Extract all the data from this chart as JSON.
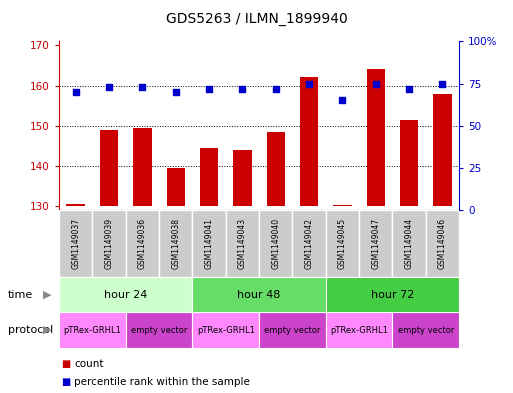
{
  "title": "GDS5263 / ILMN_1899940",
  "samples": [
    "GSM1149037",
    "GSM1149039",
    "GSM1149036",
    "GSM1149038",
    "GSM1149041",
    "GSM1149043",
    "GSM1149040",
    "GSM1149042",
    "GSM1149045",
    "GSM1149047",
    "GSM1149044",
    "GSM1149046"
  ],
  "counts": [
    130.5,
    149.0,
    149.5,
    139.5,
    144.5,
    144.0,
    148.5,
    162.0,
    130.2,
    164.0,
    151.5,
    158.0
  ],
  "percentile_ranks": [
    70,
    73,
    73,
    70,
    72,
    72,
    72,
    75,
    65,
    75,
    72,
    75
  ],
  "ylim_left": [
    129,
    171
  ],
  "ylim_right": [
    0,
    100
  ],
  "yticks_left": [
    130,
    140,
    150,
    160,
    170
  ],
  "yticks_right": [
    0,
    25,
    50,
    75,
    100
  ],
  "bar_color": "#cc0000",
  "dot_color": "#0000cc",
  "bar_bottom": 130,
  "time_groups": [
    {
      "label": "hour 24",
      "start": 0,
      "end": 4,
      "color": "#ccffcc"
    },
    {
      "label": "hour 48",
      "start": 4,
      "end": 8,
      "color": "#66dd66"
    },
    {
      "label": "hour 72",
      "start": 8,
      "end": 12,
      "color": "#44cc44"
    }
  ],
  "protocol_groups": [
    {
      "label": "pTRex-GRHL1",
      "start": 0,
      "end": 2,
      "color": "#ff88ff"
    },
    {
      "label": "empty vector",
      "start": 2,
      "end": 4,
      "color": "#cc44cc"
    },
    {
      "label": "pTRex-GRHL1",
      "start": 4,
      "end": 6,
      "color": "#ff88ff"
    },
    {
      "label": "empty vector",
      "start": 6,
      "end": 8,
      "color": "#cc44cc"
    },
    {
      "label": "pTRex-GRHL1",
      "start": 8,
      "end": 10,
      "color": "#ff88ff"
    },
    {
      "label": "empty vector",
      "start": 10,
      "end": 12,
      "color": "#cc44cc"
    }
  ],
  "time_label": "time",
  "protocol_label": "protocol",
  "legend_count_label": "count",
  "legend_percentile_label": "percentile rank within the sample",
  "background_color": "#ffffff",
  "sample_box_color": "#cccccc",
  "sample_box_edge": "#ffffff"
}
